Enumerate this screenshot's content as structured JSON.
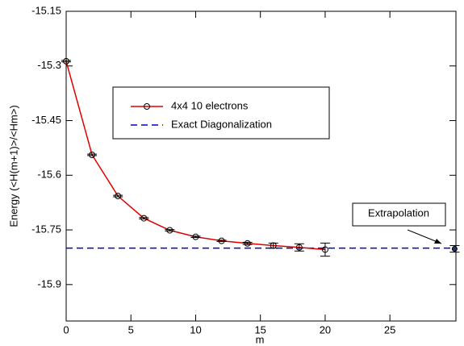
{
  "chart_data": {
    "type": "line",
    "xlabel": "m",
    "ylabel": "Energy (<H(m+1)>/<Hm>)",
    "x": [
      0,
      2,
      4,
      6,
      8,
      10,
      12,
      14,
      16,
      18,
      20
    ],
    "series": [
      {
        "name": "4x4 10 electrons",
        "color": "#e00000",
        "values": [
          -15.287,
          -15.544,
          -15.657,
          -15.718,
          -15.751,
          -15.769,
          -15.78,
          -15.787,
          -15.793,
          -15.798,
          -15.804
        ],
        "errors": [
          0.002,
          0.002,
          0.002,
          0.002,
          0.002,
          0.002,
          0.002,
          0.003,
          0.007,
          0.01,
          0.018
        ]
      }
    ],
    "reference": {
      "name": "Exact Diagonalization",
      "color": "#0000cc",
      "value": -15.8
    },
    "extrapolation": {
      "label": "Extrapolation",
      "x": 30,
      "value": -15.802,
      "error": 0.009
    },
    "xlim": [
      0,
      30.1
    ],
    "ylim": [
      -16.0,
      -15.15
    ],
    "xticks": [
      0,
      5,
      10,
      15,
      20,
      25
    ],
    "yticks": [
      -15.15,
      -15.3,
      -15.45,
      -15.6,
      -15.75,
      -15.9
    ]
  }
}
